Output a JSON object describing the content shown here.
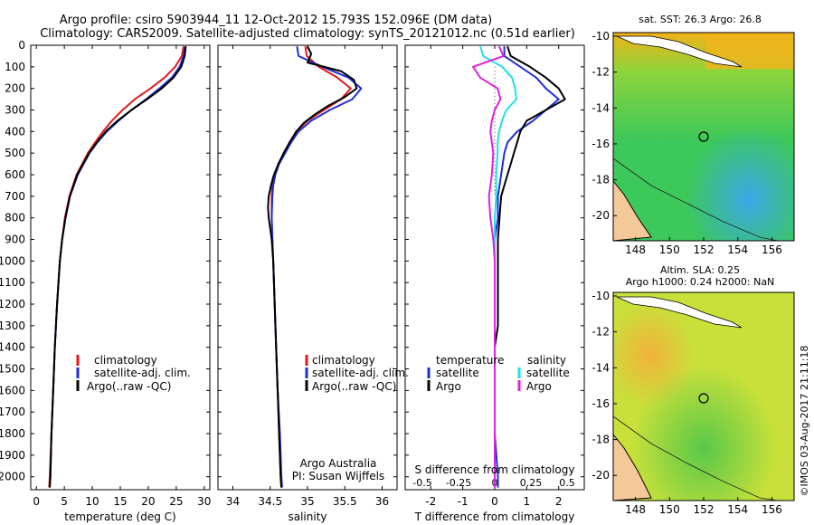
{
  "header": {
    "line1": "Argo profile: csiro 5903944_11 12-Oct-2012 15.793S 152.096E (DM data)",
    "line2": "Climatology: CARS2009. Satellite-adjusted climatology: synTS_20121012.nc (0.51d earlier)"
  },
  "colors": {
    "climatology": "#e31a1c",
    "satellite": "#1f2fd6",
    "argo": "#000000",
    "sal_satellite": "#22e0e6",
    "sal_argo": "#e020e0"
  },
  "chart_data": [
    {
      "id": "temperature",
      "type": "line",
      "xlabel": "temperature (deg C)",
      "ylabel": "",
      "xlim": [
        -1,
        31
      ],
      "ylim": [
        2060,
        0
      ],
      "xticks": [
        0,
        5,
        10,
        15,
        20,
        25,
        30
      ],
      "xtick_labels": [
        "0",
        "5",
        "10",
        "15",
        "20",
        "25",
        "30"
      ],
      "yticks": [
        0,
        100,
        200,
        300,
        400,
        500,
        600,
        700,
        800,
        900,
        1000,
        1100,
        1200,
        1300,
        1400,
        1500,
        1600,
        1700,
        1800,
        1900,
        2000
      ],
      "legend": [
        "climatology",
        "satellite-adj. clim.",
        "Argo(..raw -QC)"
      ],
      "series": [
        {
          "name": "climatology",
          "depth": [
            5,
            50,
            100,
            150,
            200,
            250,
            300,
            350,
            400,
            450,
            500,
            600,
            700,
            800,
            900,
            1000,
            1200,
            1400,
            1600,
            1800,
            2000,
            2050
          ],
          "values": [
            26.3,
            26.0,
            24.8,
            22.9,
            20.4,
            17.6,
            15.4,
            13.5,
            11.9,
            10.5,
            9.2,
            7.2,
            5.9,
            5.1,
            4.6,
            4.2,
            3.7,
            3.3,
            3.0,
            2.7,
            2.4,
            2.3
          ]
        },
        {
          "name": "satellite-adj. clim.",
          "depth": [
            5,
            50,
            100,
            150,
            200,
            250,
            300,
            350,
            400,
            450,
            500,
            600,
            700,
            800,
            900,
            1000,
            1200,
            1400,
            1600,
            1800,
            2000,
            2050
          ],
          "values": [
            26.6,
            26.3,
            25.6,
            24.2,
            22.0,
            19.6,
            17.0,
            14.7,
            12.6,
            10.9,
            9.5,
            7.4,
            6.0,
            5.2,
            4.6,
            4.2,
            3.7,
            3.3,
            3.0,
            2.7,
            2.5,
            2.4
          ]
        },
        {
          "name": "Argo(..raw -QC)",
          "depth": [
            5,
            50,
            100,
            150,
            200,
            250,
            300,
            350,
            400,
            450,
            500,
            600,
            700,
            800,
            900,
            1000,
            1200,
            1400,
            1600,
            1800,
            2000,
            2050
          ],
          "values": [
            26.7,
            26.5,
            25.9,
            24.5,
            22.4,
            19.8,
            17.0,
            14.5,
            12.4,
            10.8,
            9.4,
            7.3,
            6.0,
            5.2,
            4.6,
            4.2,
            3.7,
            3.3,
            3.0,
            2.7,
            2.5,
            2.4
          ]
        }
      ]
    },
    {
      "id": "salinity",
      "type": "line",
      "xlabel": "salinity",
      "ylabel": "",
      "xlim": [
        33.8,
        36.2
      ],
      "ylim": [
        2060,
        0
      ],
      "xticks": [
        34,
        34.5,
        35,
        35.5,
        36
      ],
      "xtick_labels": [
        "34",
        "34.5",
        "35",
        "35.5",
        "36"
      ],
      "legend": [
        "climatology",
        "satellite-adj. clim.",
        "Argo(..raw -QC)"
      ],
      "annotation": [
        "Argo Australia",
        "PI: Susan Wijffels"
      ],
      "series": [
        {
          "name": "climatology",
          "depth": [
            5,
            50,
            100,
            150,
            200,
            250,
            300,
            350,
            400,
            450,
            500,
            550,
            600,
            650,
            700,
            800,
            900,
            1000,
            1200,
            1400,
            1600,
            1800,
            2000,
            2050
          ],
          "values": [
            34.97,
            34.99,
            35.15,
            35.4,
            35.58,
            35.45,
            35.22,
            35.0,
            34.85,
            34.76,
            34.68,
            34.61,
            34.56,
            34.53,
            34.52,
            34.52,
            34.53,
            34.54,
            34.56,
            34.58,
            34.6,
            34.62,
            34.64,
            34.65
          ]
        },
        {
          "name": "satellite-adj. clim.",
          "depth": [
            5,
            50,
            100,
            150,
            200,
            250,
            300,
            350,
            400,
            450,
            500,
            550,
            600,
            650,
            700,
            800,
            900,
            1000,
            1200,
            1400,
            1600,
            1800,
            2000,
            2050
          ],
          "values": [
            34.86,
            34.88,
            35.2,
            35.55,
            35.72,
            35.6,
            35.3,
            35.05,
            34.88,
            34.78,
            34.7,
            34.62,
            34.57,
            34.54,
            34.53,
            34.52,
            34.53,
            34.54,
            34.56,
            34.58,
            34.6,
            34.63,
            34.65,
            34.66
          ]
        },
        {
          "name": "Argo(..raw -QC)",
          "depth": [
            5,
            40,
            80,
            120,
            160,
            200,
            240,
            280,
            320,
            360,
            400,
            450,
            500,
            550,
            600,
            650,
            700,
            750,
            800,
            850,
            900,
            1000,
            1200,
            1400,
            1600,
            1800,
            2000,
            2050
          ],
          "values": [
            35.0,
            35.05,
            35.0,
            35.45,
            35.62,
            35.66,
            35.5,
            35.28,
            35.1,
            34.95,
            34.85,
            34.76,
            34.68,
            34.61,
            34.55,
            34.51,
            34.48,
            34.47,
            34.48,
            34.5,
            34.52,
            34.54,
            34.56,
            34.58,
            34.6,
            34.62,
            34.64,
            34.65
          ]
        }
      ]
    },
    {
      "id": "differences",
      "type": "line",
      "xlabel": "T difference from climatology",
      "x2label": "S difference from climatology",
      "xlim": [
        -2.8,
        2.8
      ],
      "ylim": [
        2060,
        0
      ],
      "xticks": [
        -2,
        -1,
        0,
        1,
        2
      ],
      "xtick_labels": [
        "-2",
        "-1",
        "0",
        "1",
        "2"
      ],
      "x2ticks": [
        -0.5,
        -0.25,
        0,
        0.25,
        0.5
      ],
      "x2tick_labels": [
        "-0.5",
        "-0.25",
        "0",
        "0.25",
        "0.5"
      ],
      "legend_temperature": {
        "title": "temperature",
        "items": [
          "satellite",
          "Argo"
        ]
      },
      "legend_salinity": {
        "title": "salinity",
        "items": [
          "satellite",
          "Argo"
        ]
      },
      "series": [
        {
          "name": "temperature satellite",
          "depth": [
            5,
            50,
            100,
            150,
            200,
            250,
            300,
            350,
            400,
            450,
            500,
            600,
            700,
            800,
            900,
            1000,
            1200,
            1400,
            1600,
            1800,
            2000,
            2050
          ],
          "values": [
            0.3,
            0.3,
            0.8,
            1.3,
            1.6,
            2.0,
            1.6,
            1.2,
            0.7,
            0.4,
            0.3,
            0.2,
            0.1,
            0.1,
            0.0,
            0.0,
            0.0,
            0.0,
            0.0,
            0.0,
            0.1,
            0.1
          ]
        },
        {
          "name": "temperature Argo",
          "depth": [
            5,
            50,
            100,
            150,
            200,
            250,
            300,
            350,
            400,
            450,
            500,
            550,
            600,
            650,
            700,
            800,
            900,
            1000,
            1200,
            1300,
            1400,
            1600,
            1800,
            2000,
            2050
          ],
          "values": [
            0.4,
            0.5,
            1.1,
            1.6,
            2.0,
            2.2,
            1.6,
            1.0,
            0.8,
            0.7,
            0.6,
            0.5,
            0.4,
            0.3,
            0.2,
            0.15,
            0.1,
            0.1,
            0.1,
            0.1,
            0.0,
            0.0,
            0.0,
            0.0,
            0.0
          ]
        },
        {
          "name": "salinity satellite",
          "depth": [
            5,
            50,
            100,
            150,
            200,
            250,
            300,
            350,
            400,
            450,
            500,
            600,
            700,
            800,
            900,
            1000,
            1200,
            1400,
            1600,
            1800,
            2000,
            2050
          ],
          "values": [
            -0.1,
            -0.08,
            0.05,
            0.12,
            0.14,
            0.15,
            0.08,
            0.05,
            0.03,
            0.02,
            0.02,
            0.01,
            0.01,
            0.0,
            0.0,
            0.0,
            0.0,
            0.0,
            0.0,
            0.0,
            0.0,
            0.0
          ]
        },
        {
          "name": "salinity Argo",
          "depth": [
            5,
            50,
            100,
            150,
            200,
            250,
            300,
            350,
            400,
            450,
            500,
            600,
            700,
            800,
            900,
            1000,
            1200,
            1400,
            1600,
            1800,
            2000,
            2050
          ],
          "values": [
            0.03,
            0.06,
            -0.15,
            -0.1,
            0.02,
            0.04,
            0.0,
            -0.02,
            -0.03,
            -0.02,
            -0.01,
            -0.02,
            -0.04,
            -0.03,
            -0.01,
            0.0,
            0.0,
            0.0,
            0.0,
            0.0,
            0.0,
            0.0
          ]
        }
      ]
    }
  ],
  "maps": {
    "sst": {
      "title": "sat. SST: 26.3 Argo: 26.8",
      "xticks": [
        "148",
        "150",
        "152",
        "154",
        "156"
      ],
      "yticks": [
        "-10",
        "-12",
        "-14",
        "-16",
        "-18",
        "-20"
      ]
    },
    "sla": {
      "title1": "Altim. SLA: 0.25",
      "title2": "Argo h1000: 0.24 h2000: NaN",
      "xticks": [
        "148",
        "150",
        "152",
        "154",
        "156"
      ],
      "yticks": [
        "-10",
        "-12",
        "-14",
        "-16",
        "-18",
        "-20"
      ]
    }
  },
  "footer": {
    "credit": "©IMOS 03-Aug-2017 21:11:18"
  },
  "depth_ticks": [
    "0",
    "100",
    "200",
    "300",
    "400",
    "500",
    "600",
    "700",
    "800",
    "900",
    "1000",
    "1100",
    "1200",
    "1300",
    "1400",
    "1500",
    "1600",
    "1700",
    "1800",
    "1900",
    "2000"
  ]
}
